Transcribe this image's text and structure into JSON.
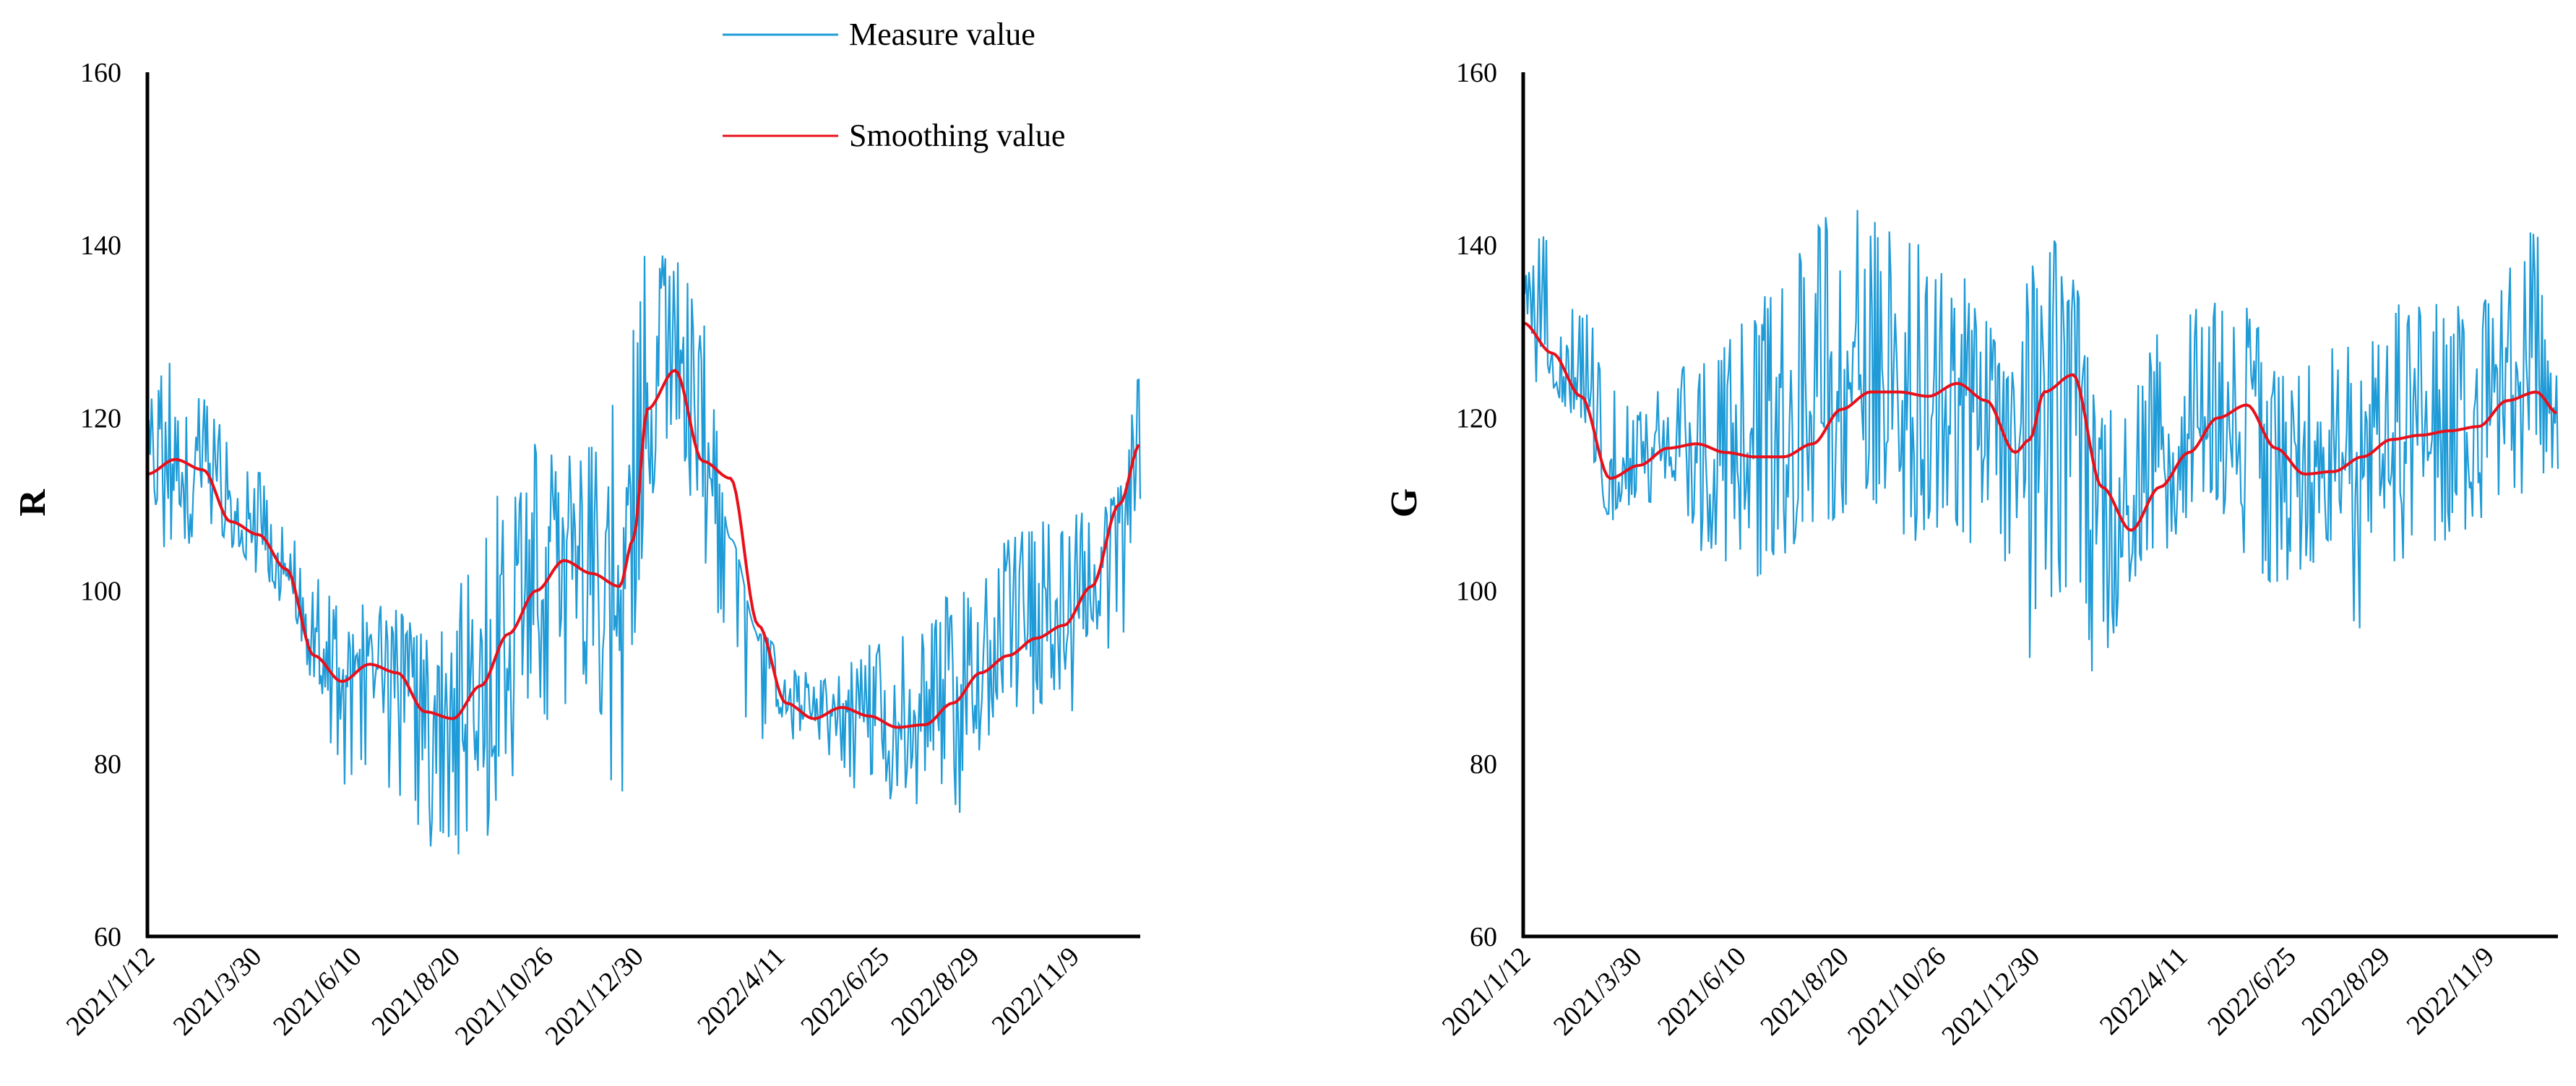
{
  "legend": {
    "measure_label": "Measure value",
    "smooth_label": "Smoothing value",
    "measure_color": "#1f9bd7",
    "smooth_color": "#e8101a"
  },
  "chart_data": [
    {
      "type": "line",
      "ylabel": "R",
      "xlabel": "",
      "ylim": [
        60,
        160
      ],
      "yticks": [
        60,
        80,
        100,
        120,
        140,
        160
      ],
      "xlim": [
        0,
        715
      ],
      "x_tick_labels": [
        "2021/1/12",
        "2021/3/30",
        "2021/6/10",
        "2021/8/20",
        "2021/10/26",
        "2021/12/30",
        "2022/4/11",
        "2022/6/25",
        "2022/8/29",
        "2022/11/9"
      ],
      "x_tick_days": [
        0,
        77,
        149,
        220,
        287,
        352,
        454,
        529,
        594,
        666
      ],
      "series": [
        {
          "name": "Measure value",
          "note": "daily measurements with noise; envelope approx. smoothing ± amplitude",
          "envelope_days": [
            0,
            20,
            40,
            60,
            80,
            100,
            120,
            140,
            160,
            180,
            200,
            220,
            240,
            260,
            280,
            300,
            320,
            340,
            350,
            360,
            380,
            400,
            420,
            440,
            460,
            480,
            500,
            520,
            540,
            560,
            580,
            600,
            620,
            640,
            660,
            680,
            700,
            715
          ],
          "envelope_min": [
            103,
            104,
            106,
            105,
            102,
            98,
            89,
            77,
            80,
            75,
            70,
            69,
            70,
            76,
            84,
            85,
            86,
            75,
            90,
            110,
            112,
            98,
            90,
            80,
            82,
            80,
            78,
            76,
            75,
            74,
            73,
            80,
            82,
            84,
            85,
            88,
            92,
            110
          ],
          "envelope_max": [
            126,
            128,
            124,
            118,
            114,
            108,
            102,
            98,
            99,
            98,
            95,
            99,
            108,
            114,
            118,
            117,
            120,
            123,
            135,
            141,
            140,
            131,
            106,
            95,
            93,
            90,
            92,
            94,
            95,
            97,
            100,
            103,
            106,
            108,
            109,
            110,
            112,
            126
          ]
        },
        {
          "name": "Smoothing value",
          "x": [
            0,
            20,
            40,
            60,
            80,
            100,
            120,
            140,
            160,
            180,
            200,
            220,
            240,
            260,
            280,
            300,
            320,
            340,
            350,
            360,
            380,
            400,
            420,
            440,
            460,
            480,
            500,
            520,
            540,
            560,
            580,
            600,
            620,
            640,
            660,
            680,
            700,
            715
          ],
          "values": [
            113.5,
            115.2,
            114.0,
            108.0,
            106.5,
            102.5,
            92.5,
            89.5,
            91.5,
            90.5,
            86.0,
            85.2,
            89.0,
            95.0,
            100.0,
            103.5,
            102.0,
            100.5,
            106.0,
            121.0,
            125.5,
            115.0,
            113.0,
            96.0,
            87.0,
            85.2,
            86.5,
            85.5,
            84.2,
            84.5,
            87.0,
            90.5,
            92.5,
            94.5,
            96.0,
            100.5,
            110.0,
            117.0
          ]
        }
      ]
    },
    {
      "type": "line",
      "ylabel": "G",
      "xlabel": "",
      "ylim": [
        60,
        160
      ],
      "yticks": [
        60,
        80,
        100,
        120,
        140,
        160
      ],
      "xlim": [
        0,
        715
      ],
      "x_tick_labels": [
        "2021/1/12",
        "2021/3/30",
        "2021/6/10",
        "2021/8/20",
        "2021/10/26",
        "2021/12/30",
        "2022/4/11",
        "2022/6/25",
        "2022/8/29",
        "2022/11/9"
      ],
      "x_tick_days": [
        0,
        77,
        149,
        220,
        287,
        352,
        454,
        529,
        594,
        666
      ],
      "series": [
        {
          "name": "Measure value",
          "note": "daily measurements with noise; envelope approx. smoothing ± amplitude",
          "envelope_days": [
            0,
            20,
            40,
            60,
            80,
            100,
            120,
            140,
            160,
            180,
            200,
            220,
            240,
            260,
            280,
            300,
            320,
            340,
            350,
            360,
            380,
            400,
            420,
            440,
            460,
            480,
            500,
            520,
            540,
            560,
            580,
            600,
            620,
            640,
            660,
            680,
            700,
            715
          ],
          "envelope_min": [
            115,
            122,
            120,
            108,
            110,
            110,
            105,
            98,
            100,
            102,
            104,
            108,
            107,
            106,
            105,
            104,
            106,
            100,
            92,
            96,
            90,
            88,
            100,
            103,
            106,
            108,
            104,
            100,
            101,
            104,
            92,
            103,
            104,
            105,
            108,
            110,
            112,
            113
          ],
          "envelope_max": [
            138,
            144,
            135,
            126,
            121,
            124,
            128,
            130,
            132,
            140,
            143,
            144,
            145,
            143,
            140,
            138,
            132,
            128,
            138,
            144,
            136,
            120,
            125,
            130,
            134,
            135,
            133,
            126,
            127,
            130,
            133,
            133,
            135,
            133,
            134,
            138,
            142,
            130
          ]
        },
        {
          "name": "Smoothing value",
          "x": [
            0,
            20,
            40,
            60,
            80,
            100,
            120,
            140,
            160,
            180,
            200,
            220,
            240,
            260,
            280,
            300,
            320,
            340,
            350,
            360,
            380,
            400,
            420,
            440,
            460,
            480,
            500,
            520,
            540,
            560,
            580,
            600,
            620,
            640,
            660,
            680,
            700,
            715
          ],
          "values": [
            131.0,
            127.5,
            122.5,
            113.0,
            114.5,
            116.5,
            117.0,
            116.0,
            115.5,
            115.5,
            117.0,
            121.0,
            123.0,
            123.0,
            122.5,
            124.0,
            122.0,
            116.0,
            117.5,
            123.0,
            125.0,
            112.0,
            107.0,
            112.0,
            116.0,
            120.0,
            121.5,
            116.5,
            113.5,
            113.8,
            115.5,
            117.5,
            118.0,
            118.5,
            119.0,
            122.0,
            123.0,
            120.5
          ]
        }
      ]
    }
  ]
}
